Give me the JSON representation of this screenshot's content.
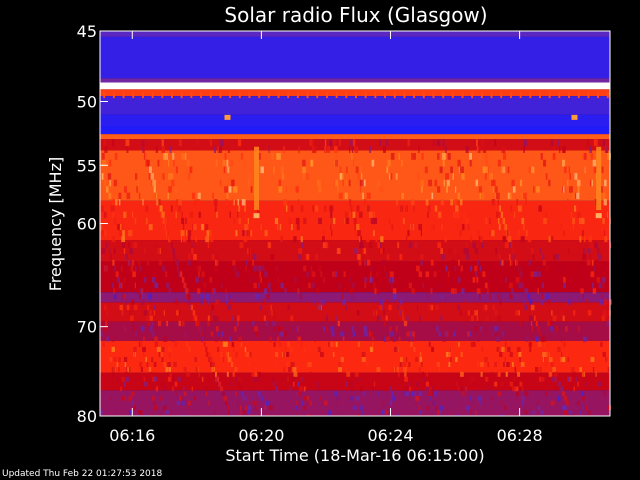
{
  "chart_data": {
    "type": "heatmap",
    "title": "Solar radio Flux (Glasgow)",
    "xlabel": "Start Time (18-Mar-16 06:15:00)",
    "ylabel": "Frequency [MHz]",
    "x_unit": "minutes after 06:15:00",
    "xlim": [
      0,
      15.8
    ],
    "ylim": [
      45,
      80
    ],
    "y_scale": "log",
    "x_ticks": [
      {
        "label": "06:16",
        "value": 1
      },
      {
        "label": "06:20",
        "value": 5
      },
      {
        "label": "06:24",
        "value": 9
      },
      {
        "label": "06:28",
        "value": 13
      }
    ],
    "y_ticks": [
      {
        "label": "45",
        "value": 45
      },
      {
        "label": "50",
        "value": 50
      },
      {
        "label": "55",
        "value": 55
      },
      {
        "label": "60",
        "value": 60
      },
      {
        "label": "70",
        "value": 70
      },
      {
        "label": "80",
        "value": 80
      }
    ],
    "colormap": [
      "#00007a",
      "#1a1aff",
      "#6a2ab0",
      "#c00018",
      "#ff2a10",
      "#ff9020",
      "#ffffff"
    ],
    "bands": [
      {
        "f0": 45.0,
        "f1": 45.4,
        "level": 0.3
      },
      {
        "f0": 45.4,
        "f1": 48.3,
        "level": 0.22
      },
      {
        "f0": 48.3,
        "f1": 48.6,
        "level": 0.35
      },
      {
        "f0": 48.6,
        "f1": 49.1,
        "level": 1.0
      },
      {
        "f0": 49.1,
        "f1": 49.6,
        "level": 0.7
      },
      {
        "f0": 49.6,
        "f1": 51.0,
        "level": 0.25
      },
      {
        "f0": 51.0,
        "f1": 51.9,
        "level": 0.2
      },
      {
        "f0": 51.9,
        "f1": 52.5,
        "level": 0.18
      },
      {
        "f0": 52.5,
        "f1": 52.9,
        "level": 0.75
      },
      {
        "f0": 52.9,
        "f1": 53.8,
        "level": 0.55
      },
      {
        "f0": 53.8,
        "f1": 58.0,
        "level": 0.74
      },
      {
        "f0": 58.0,
        "f1": 61.5,
        "level": 0.65
      },
      {
        "f0": 61.5,
        "f1": 63.5,
        "level": 0.55
      },
      {
        "f0": 63.5,
        "f1": 66.5,
        "level": 0.5
      },
      {
        "f0": 66.5,
        "f1": 67.5,
        "level": 0.4
      },
      {
        "f0": 67.5,
        "f1": 69.5,
        "level": 0.55
      },
      {
        "f0": 69.5,
        "f1": 71.5,
        "level": 0.45
      },
      {
        "f0": 71.5,
        "f1": 75.0,
        "level": 0.66
      },
      {
        "f0": 75.0,
        "f1": 77.0,
        "level": 0.52
      },
      {
        "f0": 77.0,
        "f1": 80.0,
        "level": 0.42
      }
    ],
    "bursts": [
      {
        "t": 4.85,
        "f0": 53.5,
        "f1": 58.8,
        "level": 0.82
      },
      {
        "t": 15.45,
        "f0": 53.5,
        "f1": 58.8,
        "level": 0.82
      }
    ],
    "spots": [
      {
        "t": 3.95,
        "f": 51.2,
        "level": 0.85
      },
      {
        "t": 14.7,
        "f": 51.2,
        "level": 0.85
      },
      {
        "t": 4.85,
        "f": 59.3,
        "level": 0.88
      },
      {
        "t": 15.45,
        "f": 59.3,
        "level": 0.88
      }
    ]
  },
  "footer": {
    "updated": "Updated Thu Feb 22 01:27:53 2018"
  }
}
